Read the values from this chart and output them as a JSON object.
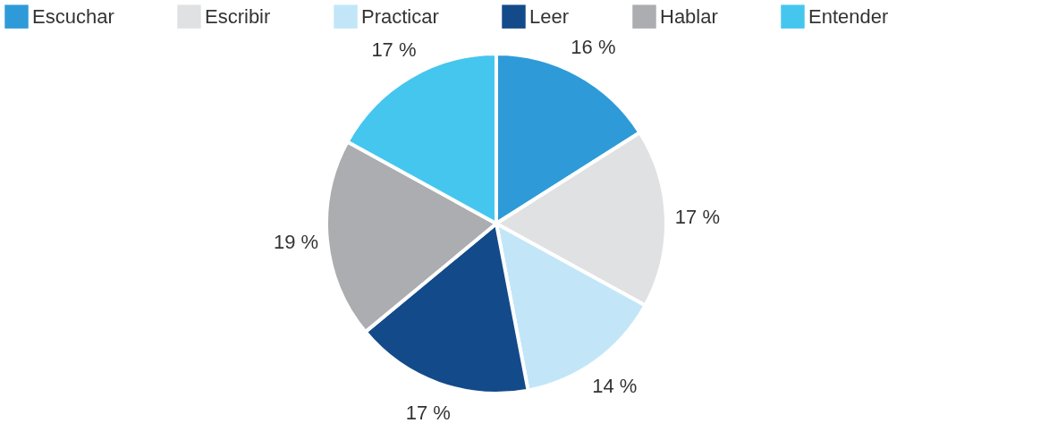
{
  "chart_data": {
    "type": "pie",
    "categories": [
      "Escuchar",
      "Escribir",
      "Practicar",
      "Leer",
      "Hablar",
      "Entender"
    ],
    "values": [
      16,
      17,
      14,
      17,
      19,
      17
    ],
    "colors": [
      "#2e9bd8",
      "#e0e1e3",
      "#c2e6f8",
      "#134a8a",
      "#acadb0",
      "#45c6ee"
    ],
    "value_labels": [
      "16 %",
      "17 %",
      "14 %",
      "17 %",
      "19 %",
      "17 %"
    ],
    "legend": "top"
  }
}
